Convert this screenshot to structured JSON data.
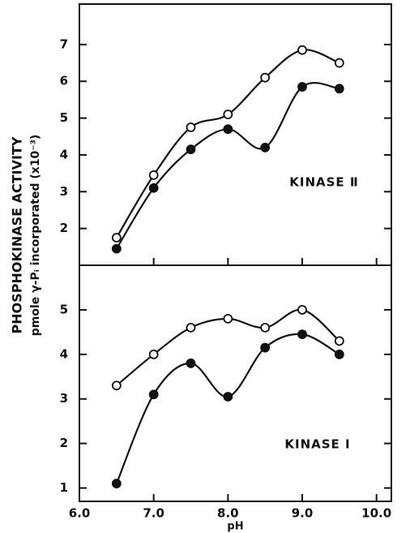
{
  "chart_data": [
    {
      "type": "line",
      "ylabel": [
        "PHOSPHOKINASE ACTIVITY",
        "pmole γ-Pᵢ incorporated (x10⁻³)"
      ],
      "annotation": "KINASE Ⅱ",
      "x": [
        6.5,
        7.0,
        7.5,
        8.0,
        8.5,
        9.0,
        9.5
      ],
      "series": [
        {
          "color": "#111111",
          "marker": "open",
          "values": [
            1.75,
            3.45,
            4.75,
            5.1,
            6.1,
            6.85,
            6.5
          ]
        },
        {
          "color": "#111111",
          "marker": "filled",
          "values": [
            1.45,
            3.1,
            4.15,
            4.7,
            4.2,
            5.85,
            5.8
          ]
        }
      ],
      "xlim": [
        6.0,
        10.2
      ],
      "ylim": [
        1.0,
        8.1
      ],
      "yticks": [
        2,
        3,
        4,
        5,
        6,
        7
      ]
    },
    {
      "type": "line",
      "annotation": "KINASE I",
      "xlabel": "pH",
      "x": [
        6.5,
        7.0,
        7.5,
        8.0,
        8.5,
        9.0,
        9.5
      ],
      "series": [
        {
          "color": "#111111",
          "marker": "open",
          "values": [
            3.3,
            4.0,
            4.6,
            4.8,
            4.6,
            5.0,
            4.3
          ]
        },
        {
          "color": "#111111",
          "marker": "filled",
          "values": [
            1.1,
            3.1,
            3.8,
            3.05,
            4.15,
            4.45,
            4.0
          ]
        }
      ],
      "xlim": [
        6.0,
        10.2
      ],
      "ylim": [
        0.7,
        6.0
      ],
      "yticks": [
        1,
        2,
        3,
        4,
        5
      ],
      "xticks": [
        {
          "value": 6,
          "label": "6.0"
        },
        {
          "value": 7,
          "label": "7.0"
        },
        {
          "value": 8,
          "label": "8.0"
        },
        {
          "value": 9,
          "label": "9.0"
        },
        {
          "value": 10,
          "label": "10.0"
        }
      ]
    }
  ]
}
